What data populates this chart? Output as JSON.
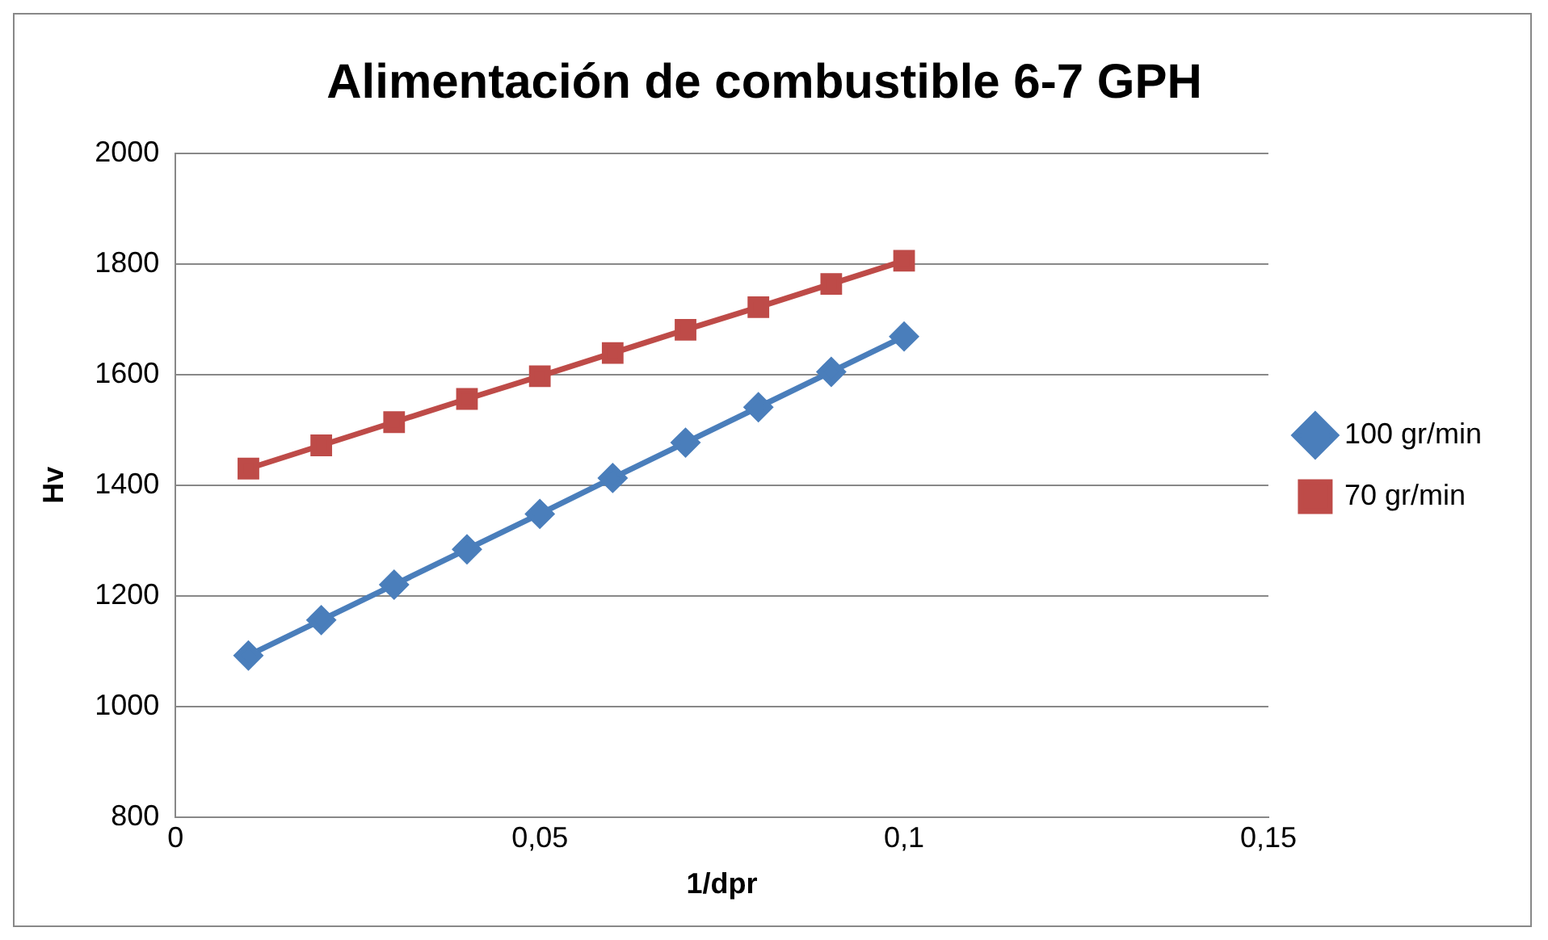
{
  "chart_data": {
    "type": "line",
    "title": "Alimentación de combustible 6-7 GPH",
    "xlabel": "1/dpr",
    "ylabel": "Hv",
    "x": [
      0.01,
      0.02,
      0.03,
      0.04,
      0.05,
      0.06,
      0.07,
      0.08,
      0.09,
      0.1
    ],
    "series": [
      {
        "name": "100 gr/min",
        "color": "#4a7ebb",
        "marker": "diamond",
        "values": [
          1092,
          1156,
          1220,
          1284,
          1348,
          1413,
          1477,
          1541,
          1605,
          1669
        ]
      },
      {
        "name": "70 gr/min",
        "color": "#be4b48",
        "marker": "square",
        "values": [
          1430,
          1472,
          1514,
          1556,
          1597,
          1639,
          1681,
          1722,
          1764,
          1806
        ]
      }
    ],
    "xlim": [
      0,
      0.15
    ],
    "xticks": [
      0,
      {
        "value": 0.05,
        "label": "0,05"
      },
      {
        "value": 0.1,
        "label": "0,1"
      },
      {
        "value": 0.15,
        "label": "0,15"
      }
    ],
    "ylim": [
      800,
      2000
    ],
    "yticks": [
      800,
      1000,
      1200,
      1400,
      1600,
      1800,
      2000
    ],
    "grid": "y",
    "legend": "right"
  }
}
